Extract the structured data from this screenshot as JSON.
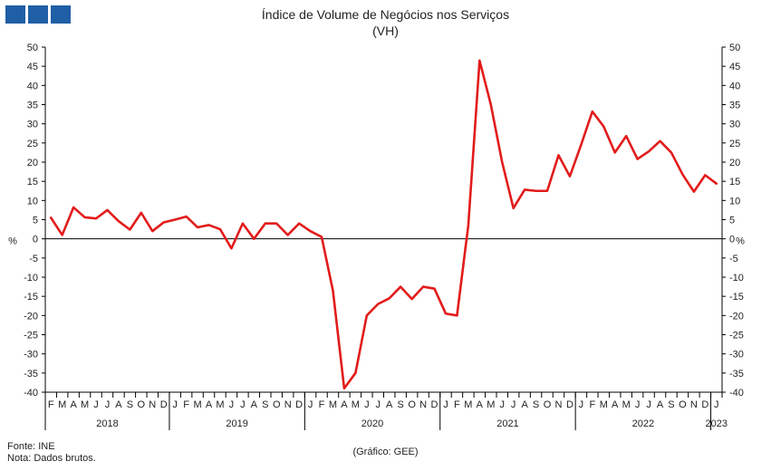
{
  "header": {
    "title": "Índice de Volume de Negócios nos Serviços",
    "subtitle": "(VH)"
  },
  "footer": {
    "source": "Fonte: INE",
    "note": "Nota: Dados brutos.",
    "credit": "(Gráfico: GEE)"
  },
  "colors": {
    "logo": "#1f5fa6",
    "series": "#e21b1b",
    "axis": "#000000"
  },
  "chart_data": {
    "type": "line",
    "title": "Índice de Volume de Negócios nos Serviços",
    "subtitle": "(VH)",
    "ylabel_left": "%",
    "ylabel_right": "%",
    "ylim": [
      -40,
      50
    ],
    "yticks": [
      -40,
      -35,
      -30,
      -25,
      -20,
      -15,
      -10,
      -5,
      0,
      5,
      10,
      15,
      20,
      25,
      30,
      35,
      40,
      45,
      50
    ],
    "grid": false,
    "month_labels": [
      "F",
      "M",
      "A",
      "M",
      "J",
      "J",
      "A",
      "S",
      "O",
      "N",
      "D",
      "J",
      "F",
      "M",
      "A",
      "M",
      "J",
      "J",
      "A",
      "S",
      "O",
      "N",
      "D",
      "J",
      "F",
      "M",
      "A",
      "M",
      "J",
      "J",
      "A",
      "S",
      "O",
      "N",
      "D",
      "J",
      "F",
      "M",
      "A",
      "M",
      "J",
      "J",
      "A",
      "S",
      "O",
      "N",
      "D",
      "J",
      "F",
      "M",
      "A",
      "M",
      "J",
      "J",
      "A",
      "S",
      "O",
      "N",
      "D",
      "J"
    ],
    "years": [
      {
        "label": "2018",
        "start": 0,
        "end": 10
      },
      {
        "label": "2019",
        "start": 11,
        "end": 22
      },
      {
        "label": "2020",
        "start": 23,
        "end": 34
      },
      {
        "label": "2021",
        "start": 35,
        "end": 46
      },
      {
        "label": "2022",
        "start": 47,
        "end": 58
      },
      {
        "label": "2023",
        "start": 59,
        "end": 59
      }
    ],
    "series": [
      {
        "values": [
          5.5,
          1.0,
          8.2,
          5.6,
          5.3,
          7.5,
          4.6,
          2.4,
          6.8,
          2.0,
          4.3,
          5.0,
          5.8,
          3.0,
          3.6,
          2.5,
          -2.5,
          4.0,
          0.0,
          4.0,
          4.0,
          1.0,
          4.0,
          2.0,
          0.5,
          -13.5,
          -39.0,
          -35.0,
          -20.0,
          -17.0,
          -15.5,
          -12.5,
          -15.7,
          -12.5,
          -13.0,
          -19.5,
          -20.0,
          3.5,
          46.5,
          35.0,
          20.0,
          8.0,
          12.8,
          12.5,
          12.5,
          21.8,
          16.3,
          24.5,
          33.2,
          29.3,
          22.5,
          26.8,
          20.8,
          22.8,
          25.5,
          22.5,
          16.8,
          12.3,
          16.6,
          14.4
        ]
      }
    ]
  }
}
